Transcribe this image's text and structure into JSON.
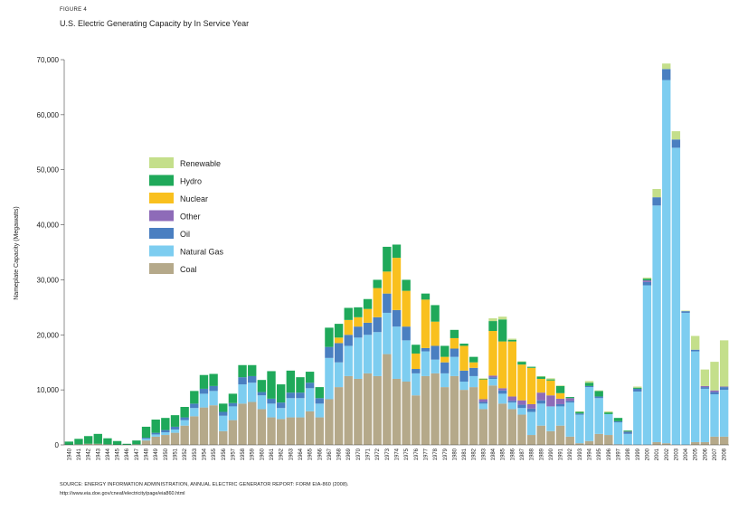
{
  "figure_label": "FIGURE 4",
  "title": "U.S. Electric Generating Capacity by In Service Year",
  "source_line1": "SOURCE: ENERGY INFORMATION ADMINISTRATION, ANNUAL ELECTRIC GENERATOR REPORT: FORM EIA-860 (2008).",
  "source_line2": "http://www.eia.doe.gov/cneaf/electricity/page/eia860.html",
  "chart_data": {
    "type": "bar",
    "stacked": true,
    "title": "U.S. Electric Generating Capacity by In Service Year",
    "ylabel": "Nameplate Capacity (Megawatts)",
    "xlabel": "",
    "ylim": [
      0,
      70000
    ],
    "yticks": [
      0,
      10000,
      20000,
      30000,
      40000,
      50000,
      60000,
      70000
    ],
    "ytick_labels": [
      "0",
      "10,000",
      "20,000",
      "30,000",
      "40,000",
      "50,000",
      "60,000",
      "70,000"
    ],
    "legend_position": "upper-left",
    "grid": false,
    "categories": [
      "1940",
      "1941",
      "1942",
      "1943",
      "1944",
      "1945",
      "1946",
      "1947",
      "1948",
      "1949",
      "1950",
      "1951",
      "1952",
      "1953",
      "1954",
      "1955",
      "1956",
      "1957",
      "1958",
      "1959",
      "1960",
      "1961",
      "1962",
      "1963",
      "1964",
      "1965",
      "1966",
      "1967",
      "1968",
      "1969",
      "1970",
      "1971",
      "1972",
      "1973",
      "1974",
      "1975",
      "1976",
      "1977",
      "1978",
      "1979",
      "1980",
      "1981",
      "1982",
      "1983",
      "1984",
      "1985",
      "1986",
      "1987",
      "1988",
      "1989",
      "1990",
      "1991",
      "1992",
      "1993",
      "1994",
      "1995",
      "1996",
      "1997",
      "1998",
      "1999",
      "2000",
      "2001",
      "2002",
      "2003",
      "2004",
      "2005",
      "2006",
      "2007",
      "2008"
    ],
    "series": [
      {
        "name": "Coal",
        "color": "#b5a98a",
        "values": [
          0,
          100,
          200,
          200,
          100,
          0,
          0,
          100,
          800,
          1500,
          1800,
          2200,
          3500,
          5200,
          6800,
          7200,
          2500,
          4500,
          7500,
          7800,
          6500,
          5000,
          4700,
          5000,
          5000,
          6100,
          5000,
          8300,
          10500,
          12500,
          12000,
          13000,
          12500,
          16500,
          12000,
          11500,
          9000,
          12500,
          13000,
          10500,
          12500,
          10000,
          10500,
          6500,
          10800,
          7500,
          6500,
          5500,
          1800,
          3500,
          2500,
          3500,
          1500,
          300,
          700,
          2000,
          1800,
          100,
          0,
          0,
          0,
          500,
          300,
          0,
          0,
          500,
          500,
          1500,
          1500
        ]
      },
      {
        "name": "Natural Gas",
        "color": "#7dcdf0",
        "values": [
          0,
          0,
          0,
          0,
          0,
          0,
          0,
          0,
          300,
          400,
          500,
          600,
          1000,
          1500,
          2500,
          2600,
          2800,
          2500,
          3500,
          3500,
          2500,
          2500,
          2000,
          3500,
          3500,
          4200,
          2500,
          7500,
          4500,
          5500,
          7500,
          7000,
          8000,
          7500,
          9500,
          7500,
          4000,
          4500,
          2500,
          2500,
          3500,
          1500,
          2000,
          1000,
          1200,
          1800,
          1200,
          1200,
          4200,
          4000,
          4500,
          3500,
          6200,
          5200,
          9800,
          6500,
          3800,
          4000,
          2000,
          9700,
          29000,
          43000,
          66000,
          54000,
          24000,
          16500,
          9700,
          7700,
          8500
        ]
      },
      {
        "name": "Oil",
        "color": "#4a7fc1",
        "values": [
          0,
          0,
          0,
          0,
          0,
          0,
          0,
          0,
          200,
          300,
          400,
          500,
          500,
          800,
          900,
          900,
          700,
          600,
          1300,
          1200,
          600,
          900,
          1000,
          1000,
          1000,
          1000,
          1000,
          2000,
          3500,
          2000,
          2000,
          2200,
          2700,
          3500,
          3000,
          2500,
          800,
          600,
          2500,
          2000,
          1500,
          2000,
          1500,
          300,
          300,
          600,
          300,
          600,
          600,
          600,
          0,
          400,
          300,
          200,
          200,
          300,
          0,
          200,
          300,
          500,
          600,
          1500,
          2000,
          1500,
          300,
          300,
          300,
          400,
          500
        ]
      },
      {
        "name": "Other",
        "color": "#8e6bb8",
        "values": [
          0,
          0,
          0,
          0,
          0,
          0,
          0,
          0,
          0,
          0,
          0,
          0,
          0,
          0,
          0,
          0,
          0,
          0,
          0,
          0,
          0,
          0,
          0,
          0,
          0,
          0,
          0,
          0,
          0,
          0,
          0,
          0,
          0,
          0,
          0,
          0,
          0,
          0,
          0,
          0,
          0,
          0,
          0,
          500,
          300,
          400,
          800,
          800,
          800,
          1400,
          2000,
          1000,
          500,
          0,
          0,
          0,
          0,
          0,
          100,
          0,
          300,
          0,
          0,
          0,
          0,
          0,
          200,
          300,
          100
        ]
      },
      {
        "name": "Nuclear",
        "color": "#f9c01e",
        "values": [
          0,
          0,
          0,
          0,
          0,
          0,
          0,
          0,
          0,
          0,
          0,
          0,
          0,
          0,
          0,
          0,
          0,
          0,
          0,
          0,
          0,
          0,
          0,
          0,
          0,
          0,
          0,
          0,
          1000,
          2700,
          1700,
          2500,
          5300,
          4000,
          9500,
          6500,
          2800,
          8800,
          4400,
          1000,
          1900,
          4500,
          1000,
          3600,
          8100,
          8500,
          10000,
          6500,
          6600,
          2500,
          2700,
          1000,
          0,
          0,
          0,
          0,
          0,
          0,
          0,
          0,
          0,
          0,
          0,
          0,
          0,
          0,
          0,
          0,
          0
        ]
      },
      {
        "name": "Hydro",
        "color": "#1fa95a",
        "values": [
          600,
          1000,
          1400,
          1800,
          1100,
          700,
          200,
          700,
          2000,
          2400,
          2200,
          2100,
          1900,
          2300,
          2500,
          2200,
          1500,
          1700,
          2200,
          2000,
          2200,
          5000,
          3300,
          4000,
          2800,
          2000,
          2000,
          3500,
          2500,
          2200,
          1800,
          1800,
          1500,
          4500,
          2400,
          2000,
          1600,
          1100,
          3000,
          2000,
          1500,
          400,
          1000,
          100,
          1800,
          4000,
          300,
          500,
          200,
          400,
          200,
          1300,
          200,
          300,
          600,
          1000,
          300,
          600,
          200,
          200,
          300,
          0,
          0,
          0,
          0,
          0,
          0,
          0,
          0
        ]
      },
      {
        "name": "Renewable",
        "color": "#c4df8b",
        "values": [
          0,
          0,
          0,
          0,
          0,
          0,
          0,
          0,
          0,
          0,
          0,
          0,
          0,
          0,
          0,
          0,
          0,
          0,
          0,
          0,
          0,
          0,
          0,
          0,
          0,
          0,
          0,
          0,
          0,
          0,
          0,
          0,
          0,
          0,
          0,
          0,
          0,
          0,
          0,
          0,
          0,
          0,
          0,
          100,
          500,
          500,
          200,
          100,
          0,
          100,
          200,
          100,
          0,
          100,
          300,
          100,
          200,
          0,
          0,
          200,
          200,
          1500,
          1000,
          1500,
          100,
          2500,
          3000,
          5200,
          8400
        ]
      }
    ],
    "legend_order": [
      "Renewable",
      "Hydro",
      "Nuclear",
      "Other",
      "Oil",
      "Natural Gas",
      "Coal"
    ]
  }
}
